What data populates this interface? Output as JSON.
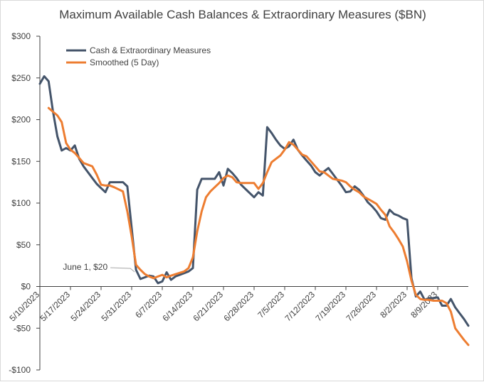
{
  "chart_data": {
    "type": "line",
    "title": "Maximum Available Cash Balances & Extraordinary Measures ($BN)",
    "xlabel": "",
    "ylabel": "",
    "ylim": [
      -100,
      300
    ],
    "yticks": [
      300,
      250,
      200,
      150,
      100,
      50,
      0,
      -50,
      -100
    ],
    "ytick_labels": [
      "$300",
      "$250",
      "$200",
      "$150",
      "$100",
      "$50",
      "$0",
      "-$50",
      "-$100"
    ],
    "xlim": [
      0,
      98
    ],
    "xticks": [
      0,
      7,
      14,
      21,
      28,
      35,
      42,
      49,
      56,
      63,
      70,
      77,
      84,
      91
    ],
    "xtick_labels": [
      "5/10/2023",
      "5/17/2023",
      "5/24/2023",
      "5/31/2023",
      "6/7/2023",
      "6/14/2023",
      "6/21/2023",
      "6/28/2023",
      "7/5/2023",
      "7/12/2023",
      "7/19/2023",
      "7/26/2023",
      "8/2/2023",
      "8/9/2023"
    ],
    "colors": {
      "series1": "#44546a",
      "series2": "#ed7d31",
      "axis": "#404040",
      "leader": "#a6a6a6"
    },
    "series": [
      {
        "name": "Cash & Extraordinary Measures",
        "x": [
          0,
          1,
          2,
          3,
          4,
          5,
          6,
          7,
          8,
          9,
          10,
          12,
          13,
          14,
          15,
          16,
          17,
          19,
          20,
          21,
          22,
          23,
          24,
          25,
          26,
          27,
          28,
          29,
          30,
          31,
          33,
          34,
          35,
          36,
          37,
          38,
          39,
          40,
          41,
          42,
          43,
          44,
          45,
          46,
          47,
          49,
          50,
          51,
          52,
          53,
          54,
          55,
          56,
          57,
          58,
          59,
          60,
          61,
          62,
          63,
          64,
          65,
          66,
          67,
          68,
          69,
          70,
          71,
          72,
          73,
          74,
          75,
          76,
          77,
          78,
          79,
          80,
          81,
          82,
          83,
          84,
          85,
          86,
          87,
          88,
          89,
          90,
          91,
          92,
          93,
          94,
          95,
          96,
          97,
          98
        ],
        "values": [
          243,
          252,
          246,
          210,
          180,
          163,
          166,
          163,
          169,
          153,
          144,
          130,
          123,
          118,
          113,
          125,
          125,
          125,
          120,
          70,
          20,
          9,
          11,
          13,
          12,
          4,
          6,
          17,
          8,
          12,
          16,
          18,
          22,
          116,
          129,
          129,
          129,
          129,
          137,
          121,
          141,
          136,
          130,
          122,
          117,
          107,
          113,
          109,
          191,
          184,
          176,
          169,
          165,
          168,
          176,
          164,
          157,
          151,
          145,
          137,
          133,
          138,
          142,
          135,
          128,
          121,
          113,
          114,
          120,
          116,
          109,
          101,
          96,
          90,
          82,
          80,
          92,
          87,
          85,
          82,
          80,
          10,
          -12,
          -6,
          -16,
          -14,
          -14,
          -13,
          -23,
          -23,
          -15,
          -25,
          -32,
          -39,
          -47
        ]
      },
      {
        "name": "Smoothed (5 Day)",
        "x": [
          2,
          4,
          5,
          6,
          7,
          8,
          9,
          10,
          12,
          13,
          14,
          15,
          16,
          17,
          19,
          20,
          21,
          22,
          23,
          24,
          25,
          26,
          27,
          28,
          29,
          30,
          33,
          34,
          35,
          36,
          37,
          38,
          39,
          40,
          41,
          42,
          43,
          44,
          45,
          46,
          47,
          49,
          50,
          51,
          52,
          53,
          54,
          55,
          56,
          57,
          58,
          59,
          60,
          61,
          62,
          63,
          64,
          65,
          66,
          67,
          68,
          69,
          70,
          71,
          72,
          73,
          74,
          75,
          76,
          77,
          78,
          79,
          80,
          81,
          82,
          83,
          84,
          85,
          86,
          87,
          88,
          89,
          90,
          91,
          92,
          93,
          94,
          95,
          96,
          97,
          98
        ],
        "values": [
          214,
          205,
          197,
          172,
          164,
          160,
          154,
          148,
          144,
          134,
          122,
          121,
          121,
          119,
          114,
          90,
          60,
          26,
          20,
          15,
          12,
          10,
          12,
          14,
          11,
          13,
          18,
          22,
          35,
          66,
          90,
          107,
          114,
          119,
          124,
          130,
          133,
          131,
          125,
          124,
          124,
          124,
          117,
          124,
          137,
          149,
          153,
          157,
          164,
          173,
          170,
          164,
          158,
          156,
          150,
          144,
          138,
          137,
          133,
          129,
          128,
          127,
          125,
          120,
          116,
          113,
          108,
          105,
          102,
          99,
          92,
          86,
          72,
          65,
          57,
          48,
          30,
          7,
          -10,
          -15,
          -16,
          -16,
          -17,
          -17,
          -17,
          -20,
          -30,
          -50,
          -57,
          -64,
          -70
        ]
      }
    ],
    "legend": [
      "Cash & Extraordinary Measures",
      "Smoothed (5 Day)"
    ],
    "legend_position": "top-left",
    "annotations": [
      {
        "text": "June 1, $20",
        "x": 22,
        "y": 20
      }
    ]
  }
}
